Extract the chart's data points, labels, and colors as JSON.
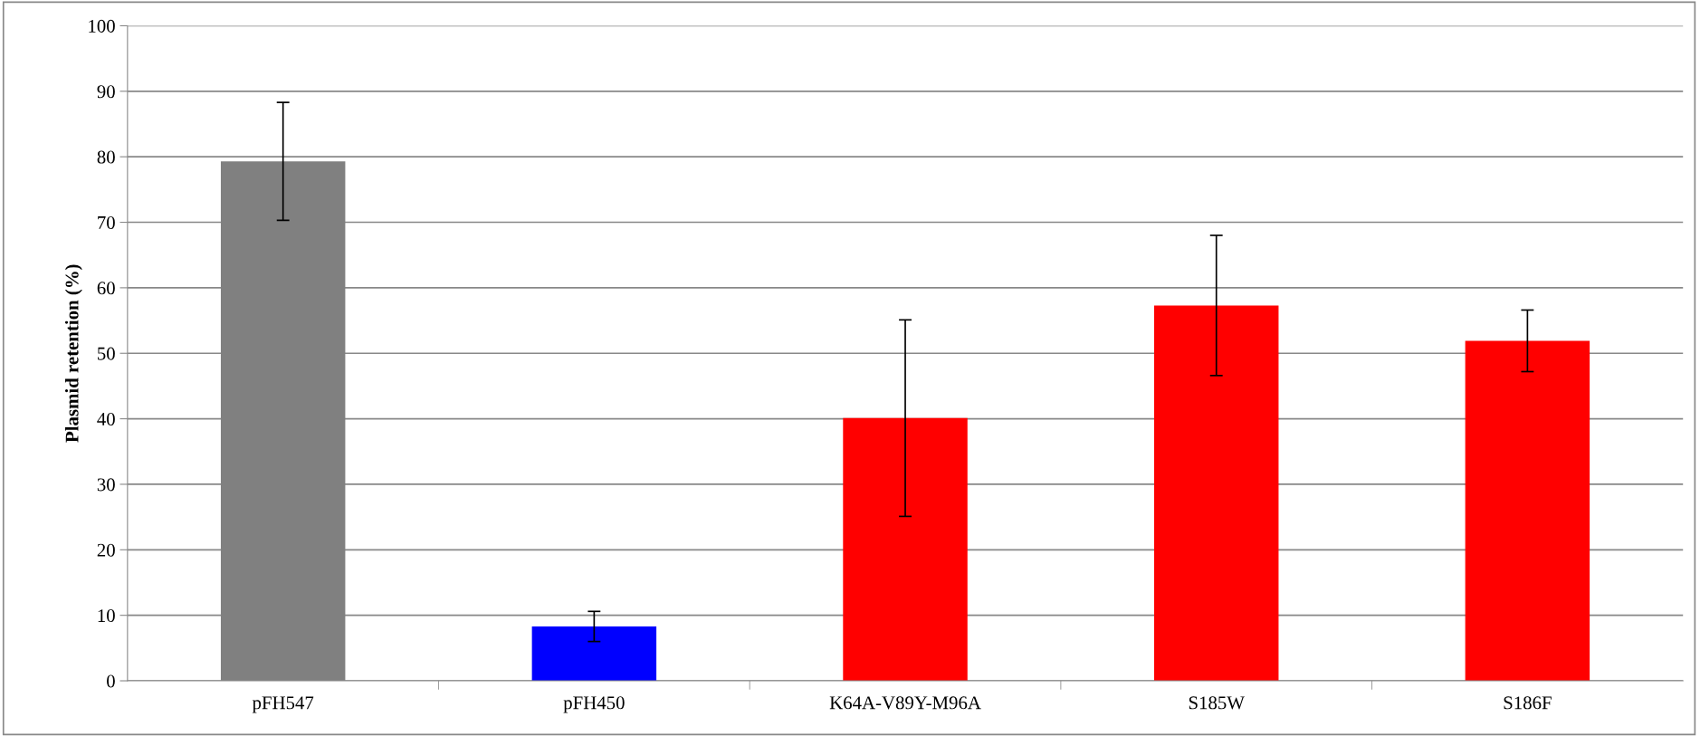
{
  "chart_data": {
    "type": "bar",
    "ylabel": "Plasmid retention (%)",
    "categories": [
      "pFH547",
      "pFH450",
      "K64A-V89Y-M96A",
      "S185W",
      "S186F"
    ],
    "values": [
      79.3,
      8.3,
      40.1,
      57.3,
      51.9
    ],
    "errors": [
      9.0,
      2.3,
      15.0,
      10.7,
      4.7
    ],
    "colors": [
      "#808080",
      "#0000ff",
      "#ff0000",
      "#ff0000",
      "#ff0000"
    ],
    "ylim": [
      0,
      100
    ],
    "yticks": [
      0,
      10,
      20,
      30,
      40,
      50,
      60,
      70,
      80,
      90,
      100
    ],
    "grid": "y"
  }
}
